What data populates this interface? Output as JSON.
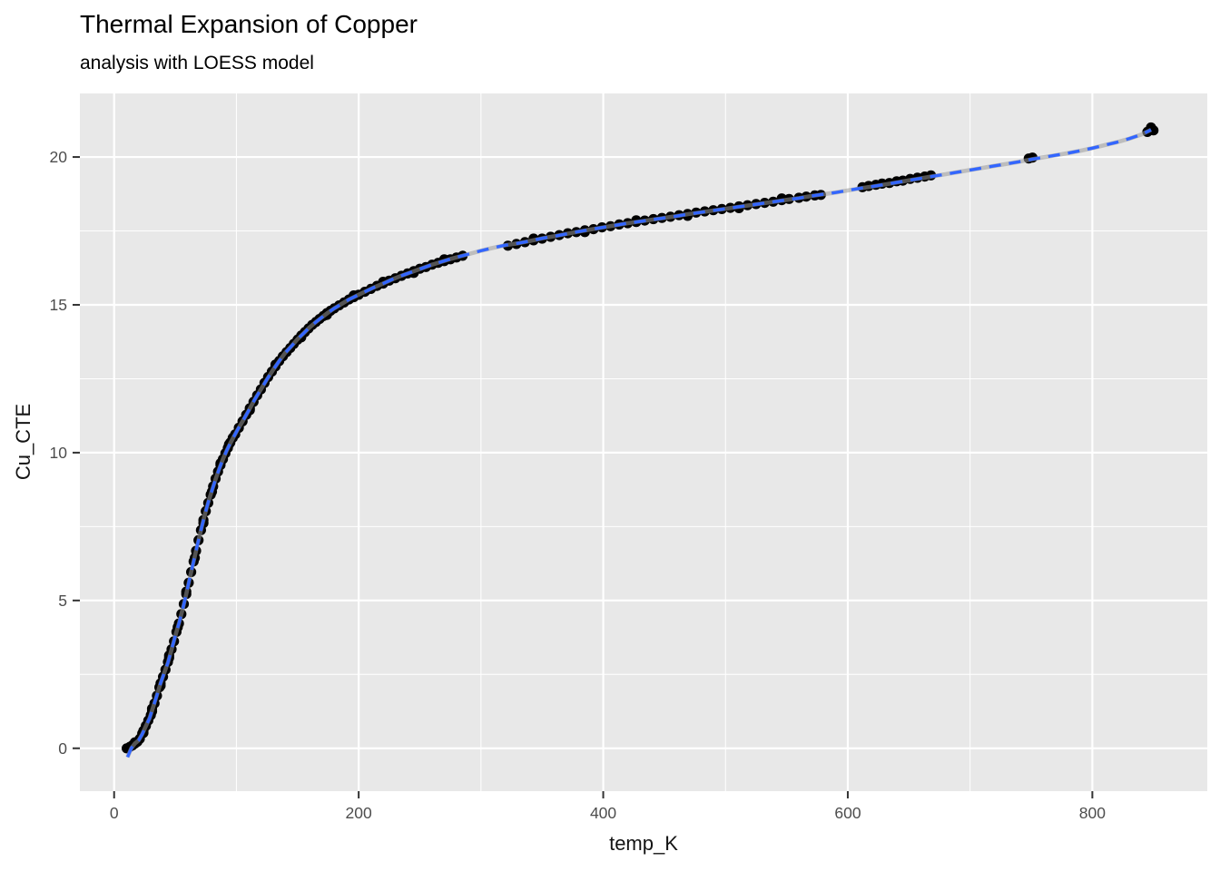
{
  "title": "Thermal Expansion of Copper",
  "subtitle": "analysis with LOESS model",
  "chart_data": {
    "type": "scatter",
    "title": "Thermal Expansion of Copper",
    "subtitle": "analysis with LOESS model",
    "xlabel": "temp_K",
    "ylabel": "Cu_CTE",
    "xlim": [
      -28,
      894
    ],
    "ylim": [
      -1.45,
      22.15
    ],
    "x_major_ticks": [
      0,
      200,
      400,
      600,
      800
    ],
    "x_minor_gridlines": [
      100,
      300,
      500,
      700
    ],
    "y_major_ticks": [
      0,
      5,
      10,
      15,
      20
    ],
    "y_minor_gridlines": [
      2.5,
      7.5,
      12.5,
      17.5
    ],
    "grid": "on",
    "legend": "none",
    "smoother": "LOESS fit drawn as blue dashed line over narrow grey SE ribbon",
    "colors": {
      "panel_bg": "#E8E8E8",
      "grid": "#FFFFFF",
      "point": "#000000",
      "line": "#3366FF",
      "ribbon": "#999999",
      "tick_mark": "#333333",
      "tick_text": "#4D4D4D",
      "axis_text": "#141414"
    },
    "points": [
      [
        10.3,
        0.0
      ],
      [
        13,
        0.05
      ],
      [
        15,
        0.1
      ],
      [
        17,
        0.16
      ],
      [
        19,
        0.22
      ],
      [
        21,
        0.32
      ],
      [
        23,
        0.5
      ],
      [
        24,
        0.59
      ],
      [
        26,
        0.76
      ],
      [
        28,
        0.94
      ],
      [
        30,
        1.12
      ],
      [
        31,
        1.25
      ],
      [
        33,
        1.52
      ],
      [
        35,
        1.78
      ],
      [
        37,
        2.06
      ],
      [
        38,
        2.2
      ],
      [
        40,
        2.42
      ],
      [
        42,
        2.66
      ],
      [
        44,
        2.92
      ],
      [
        45,
        3.06
      ],
      [
        47,
        3.35
      ],
      [
        49,
        3.62
      ],
      [
        51,
        3.94
      ],
      [
        53,
        4.22
      ],
      [
        55,
        4.54
      ],
      [
        57,
        4.88
      ],
      [
        59,
        5.22
      ],
      [
        61,
        5.6
      ],
      [
        63,
        5.96
      ],
      [
        65,
        6.32
      ],
      [
        67,
        6.68
      ],
      [
        69,
        7.04
      ],
      [
        71,
        7.38
      ],
      [
        73,
        7.72
      ],
      [
        75,
        8.02
      ],
      [
        77,
        8.3
      ],
      [
        79,
        8.58
      ],
      [
        81,
        8.86
      ],
      [
        83,
        9.12
      ],
      [
        85,
        9.36
      ],
      [
        87,
        9.58
      ],
      [
        89,
        9.78
      ],
      [
        91,
        9.98
      ],
      [
        93,
        10.16
      ],
      [
        95,
        10.34
      ],
      [
        97,
        10.5
      ],
      [
        99,
        10.62
      ],
      [
        17,
        0.2
      ],
      [
        24,
        0.52
      ],
      [
        31,
        1.34
      ],
      [
        38,
        2.12
      ],
      [
        45,
        3.14
      ],
      [
        52,
        4.1
      ],
      [
        59,
        5.3
      ],
      [
        66,
        6.44
      ],
      [
        73,
        7.62
      ],
      [
        80,
        8.68
      ],
      [
        87,
        9.64
      ],
      [
        94,
        10.28
      ],
      [
        102,
        10.84
      ],
      [
        105,
        11.06
      ],
      [
        108,
        11.28
      ],
      [
        111,
        11.5
      ],
      [
        114,
        11.72
      ],
      [
        117,
        11.94
      ],
      [
        120,
        12.14
      ],
      [
        123,
        12.36
      ],
      [
        126,
        12.56
      ],
      [
        129,
        12.74
      ],
      [
        132,
        12.92
      ],
      [
        135,
        13.1
      ],
      [
        138,
        13.26
      ],
      [
        141,
        13.4
      ],
      [
        144,
        13.54
      ],
      [
        147,
        13.68
      ],
      [
        150,
        13.82
      ],
      [
        153,
        13.96
      ],
      [
        156,
        14.08
      ],
      [
        159,
        14.2
      ],
      [
        162,
        14.32
      ],
      [
        165,
        14.42
      ],
      [
        168,
        14.52
      ],
      [
        171,
        14.62
      ],
      [
        174,
        14.72
      ],
      [
        177,
        14.8
      ],
      [
        180,
        14.88
      ],
      [
        184,
        14.98
      ],
      [
        188,
        15.08
      ],
      [
        192,
        15.18
      ],
      [
        196,
        15.26
      ],
      [
        200,
        15.34
      ],
      [
        205,
        15.44
      ],
      [
        210,
        15.54
      ],
      [
        215,
        15.64
      ],
      [
        220,
        15.72
      ],
      [
        225,
        15.82
      ],
      [
        230,
        15.9
      ],
      [
        235,
        15.98
      ],
      [
        240,
        16.06
      ],
      [
        245,
        16.14
      ],
      [
        250,
        16.22
      ],
      [
        255,
        16.28
      ],
      [
        260,
        16.36
      ],
      [
        265,
        16.42
      ],
      [
        270,
        16.48
      ],
      [
        275,
        16.54
      ],
      [
        280,
        16.6
      ],
      [
        285,
        16.66
      ],
      [
        111,
        11.44
      ],
      [
        132,
        12.98
      ],
      [
        153,
        13.9
      ],
      [
        174,
        14.66
      ],
      [
        196,
        15.32
      ],
      [
        220,
        15.78
      ],
      [
        245,
        16.08
      ],
      [
        270,
        16.54
      ],
      [
        322,
        17.0
      ],
      [
        329,
        17.06
      ],
      [
        336,
        17.12
      ],
      [
        343,
        17.18
      ],
      [
        350,
        17.24
      ],
      [
        357,
        17.3
      ],
      [
        364,
        17.36
      ],
      [
        371,
        17.42
      ],
      [
        378,
        17.46
      ],
      [
        385,
        17.52
      ],
      [
        392,
        17.56
      ],
      [
        399,
        17.62
      ],
      [
        406,
        17.66
      ],
      [
        413,
        17.72
      ],
      [
        420,
        17.76
      ],
      [
        427,
        17.8
      ],
      [
        434,
        17.85
      ],
      [
        441,
        17.9
      ],
      [
        448,
        17.94
      ],
      [
        455,
        17.98
      ],
      [
        462,
        18.03
      ],
      [
        469,
        18.07
      ],
      [
        476,
        18.12
      ],
      [
        483,
        18.16
      ],
      [
        490,
        18.2
      ],
      [
        497,
        18.24
      ],
      [
        504,
        18.28
      ],
      [
        511,
        18.33
      ],
      [
        518,
        18.37
      ],
      [
        525,
        18.41
      ],
      [
        532,
        18.45
      ],
      [
        539,
        18.49
      ],
      [
        546,
        18.54
      ],
      [
        552,
        18.58
      ],
      [
        343,
        17.24
      ],
      [
        385,
        17.46
      ],
      [
        427,
        17.86
      ],
      [
        469,
        18.01
      ],
      [
        511,
        18.27
      ],
      [
        546,
        18.6
      ],
      [
        560,
        18.62
      ],
      [
        566,
        18.66
      ],
      [
        573,
        18.7
      ],
      [
        578,
        18.72
      ],
      [
        612,
        18.98
      ],
      [
        617,
        19.02
      ],
      [
        623,
        19.06
      ],
      [
        628,
        19.1
      ],
      [
        634,
        19.12
      ],
      [
        640,
        19.18
      ],
      [
        645,
        19.2
      ],
      [
        651,
        19.26
      ],
      [
        657,
        19.3
      ],
      [
        663,
        19.34
      ],
      [
        668,
        19.38
      ],
      [
        748,
        19.95
      ],
      [
        751,
        19.98
      ],
      [
        845,
        20.85
      ],
      [
        848,
        21.0
      ],
      [
        850,
        20.9
      ]
    ],
    "loess_curve": [
      [
        11,
        -0.3
      ],
      [
        14,
        0.0
      ],
      [
        17,
        0.16
      ],
      [
        20,
        0.27
      ],
      [
        23,
        0.48
      ],
      [
        26,
        0.75
      ],
      [
        29,
        1.02
      ],
      [
        32,
        1.4
      ],
      [
        35,
        1.8
      ],
      [
        38,
        2.2
      ],
      [
        41,
        2.55
      ],
      [
        44,
        2.9
      ],
      [
        47,
        3.34
      ],
      [
        50,
        3.8
      ],
      [
        53,
        4.22
      ],
      [
        56,
        4.7
      ],
      [
        59,
        5.22
      ],
      [
        62,
        5.78
      ],
      [
        65,
        6.32
      ],
      [
        68,
        6.86
      ],
      [
        71,
        7.38
      ],
      [
        74,
        7.88
      ],
      [
        77,
        8.32
      ],
      [
        80,
        8.72
      ],
      [
        83,
        9.1
      ],
      [
        86,
        9.46
      ],
      [
        89,
        9.78
      ],
      [
        92,
        10.06
      ],
      [
        95,
        10.32
      ],
      [
        98,
        10.55
      ],
      [
        101,
        10.78
      ],
      [
        105,
        11.06
      ],
      [
        110,
        11.42
      ],
      [
        115,
        11.8
      ],
      [
        120,
        12.14
      ],
      [
        125,
        12.48
      ],
      [
        130,
        12.8
      ],
      [
        135,
        13.1
      ],
      [
        140,
        13.38
      ],
      [
        145,
        13.6
      ],
      [
        150,
        13.84
      ],
      [
        155,
        14.04
      ],
      [
        160,
        14.24
      ],
      [
        165,
        14.42
      ],
      [
        170,
        14.58
      ],
      [
        175,
        14.74
      ],
      [
        180,
        14.88
      ],
      [
        186,
        15.03
      ],
      [
        192,
        15.18
      ],
      [
        198,
        15.3
      ],
      [
        205,
        15.44
      ],
      [
        212,
        15.58
      ],
      [
        220,
        15.72
      ],
      [
        228,
        15.87
      ],
      [
        236,
        16.0
      ],
      [
        244,
        16.12
      ],
      [
        252,
        16.24
      ],
      [
        260,
        16.36
      ],
      [
        268,
        16.46
      ],
      [
        276,
        16.56
      ],
      [
        284,
        16.65
      ],
      [
        292,
        16.74
      ],
      [
        300,
        16.83
      ],
      [
        310,
        16.93
      ],
      [
        320,
        17.02
      ],
      [
        330,
        17.08
      ],
      [
        340,
        17.16
      ],
      [
        350,
        17.25
      ],
      [
        360,
        17.32
      ],
      [
        370,
        17.4
      ],
      [
        380,
        17.48
      ],
      [
        390,
        17.55
      ],
      [
        400,
        17.62
      ],
      [
        410,
        17.69
      ],
      [
        420,
        17.76
      ],
      [
        430,
        17.82
      ],
      [
        440,
        17.88
      ],
      [
        450,
        17.94
      ],
      [
        460,
        18.0
      ],
      [
        470,
        18.07
      ],
      [
        480,
        18.13
      ],
      [
        490,
        18.19
      ],
      [
        500,
        18.25
      ],
      [
        510,
        18.31
      ],
      [
        520,
        18.37
      ],
      [
        530,
        18.43
      ],
      [
        540,
        18.49
      ],
      [
        550,
        18.55
      ],
      [
        560,
        18.61
      ],
      [
        570,
        18.68
      ],
      [
        580,
        18.74
      ],
      [
        590,
        18.8
      ],
      [
        600,
        18.87
      ],
      [
        610,
        18.94
      ],
      [
        620,
        19.0
      ],
      [
        630,
        19.07
      ],
      [
        640,
        19.14
      ],
      [
        650,
        19.21
      ],
      [
        660,
        19.28
      ],
      [
        670,
        19.35
      ],
      [
        680,
        19.42
      ],
      [
        690,
        19.49
      ],
      [
        700,
        19.56
      ],
      [
        710,
        19.63
      ],
      [
        720,
        19.7
      ],
      [
        730,
        19.77
      ],
      [
        740,
        19.84
      ],
      [
        750,
        19.92
      ],
      [
        760,
        19.99
      ],
      [
        770,
        20.06
      ],
      [
        780,
        20.13
      ],
      [
        790,
        20.21
      ],
      [
        800,
        20.3
      ],
      [
        810,
        20.4
      ],
      [
        820,
        20.5
      ],
      [
        830,
        20.62
      ],
      [
        840,
        20.76
      ],
      [
        848,
        20.92
      ]
    ]
  }
}
